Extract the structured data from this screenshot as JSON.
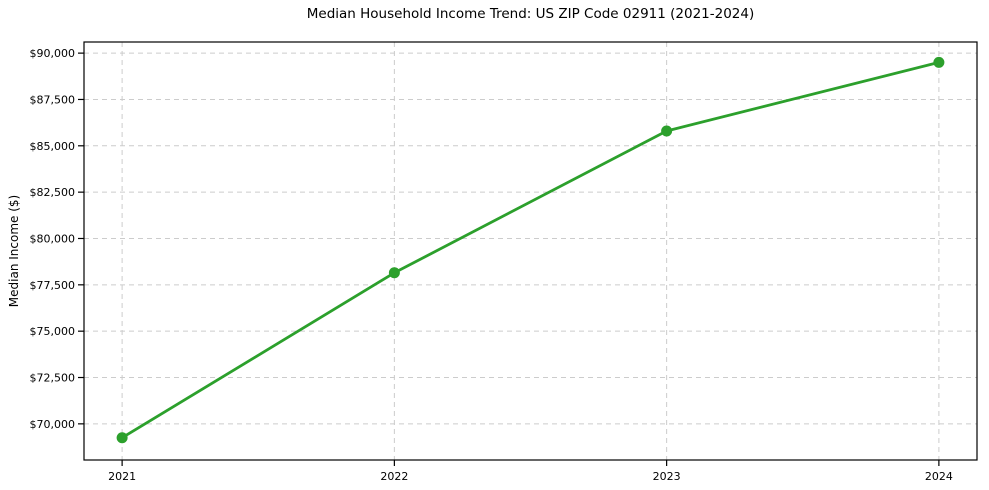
{
  "chart_data": {
    "type": "line",
    "title": "Median Household Income Trend: US ZIP Code 02911 (2021-2024)",
    "xlabel": "",
    "ylabel": "Median Income ($)",
    "x": [
      2021,
      2022,
      2023,
      2024
    ],
    "series": [
      {
        "name": "Median Household Income",
        "values": [
          69250,
          78150,
          85800,
          89500
        ]
      }
    ],
    "xtick_labels": [
      "2021",
      "2022",
      "2023",
      "2024"
    ],
    "ytick_values": [
      70000,
      72500,
      75000,
      77500,
      80000,
      82500,
      85000,
      87500,
      90000
    ],
    "ytick_labels": [
      "$70,000",
      "$72,500",
      "$75,000",
      "$77,500",
      "$80,000",
      "$82,500",
      "$85,000",
      "$87,500",
      "$90,000"
    ],
    "xlim": [
      2020.86,
      2024.14
    ],
    "ylim": [
      68050,
      90600
    ],
    "grid": true,
    "grid_linestyle": "dashed",
    "legend_position": "none",
    "line_color": "#2ca02c",
    "marker": "circle",
    "marker_color": "#2ca02c",
    "grid_color": "#cccccc",
    "axis_color": "#000000",
    "text_color": "#000000",
    "background_color": "#ffffff"
  }
}
